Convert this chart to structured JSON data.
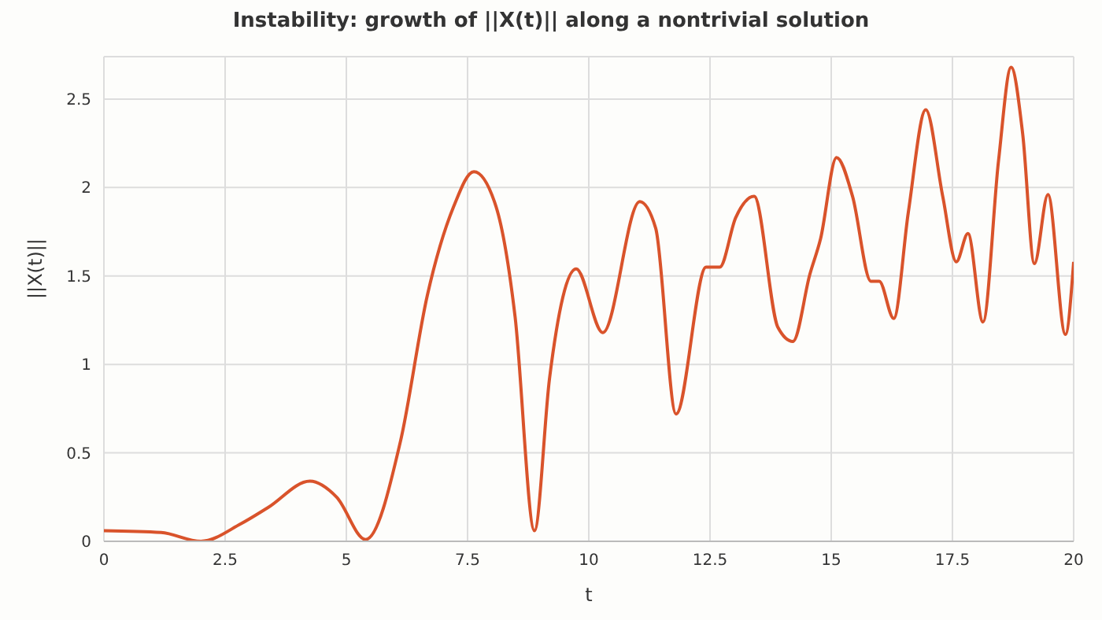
{
  "chart_data": {
    "type": "line",
    "title": "Instability: growth of ||X(t)|| along a nontrivial solution",
    "xlabel": "t",
    "ylabel": "||X(t)||",
    "x": [
      0,
      1.18,
      2.0,
      2.83,
      3.38,
      4.25,
      4.8,
      5.4,
      6.12,
      6.67,
      7.21,
      7.63,
      8.09,
      8.48,
      8.88,
      9.19,
      9.74,
      10.29,
      11.05,
      11.38,
      11.8,
      12.42,
      12.7,
      13.03,
      13.41,
      13.9,
      14.21,
      14.56,
      14.78,
      15.11,
      15.44,
      15.82,
      15.99,
      16.29,
      16.59,
      16.95,
      17.3,
      17.58,
      17.82,
      18.13,
      18.45,
      18.71,
      18.95,
      19.19,
      19.47,
      19.83,
      20.0
    ],
    "series": [
      {
        "color": "#d9532b",
        "values": [
          0.06,
          0.05,
          0.0,
          0.1,
          0.19,
          0.34,
          0.25,
          0.01,
          0.57,
          1.39,
          1.89,
          2.09,
          1.89,
          1.27,
          0.06,
          0.92,
          1.54,
          1.18,
          1.92,
          1.77,
          0.72,
          1.55,
          1.55,
          1.83,
          1.95,
          1.21,
          1.13,
          1.51,
          1.71,
          2.17,
          1.95,
          1.47,
          1.47,
          1.26,
          1.86,
          2.44,
          1.95,
          1.58,
          1.74,
          1.24,
          2.15,
          2.68,
          2.3,
          1.57,
          1.96,
          1.17,
          1.58
        ]
      }
    ],
    "xlim": [
      0,
      20
    ],
    "xticks": [
      0,
      2.5,
      5,
      7.5,
      10,
      12.5,
      15,
      17.5,
      20
    ],
    "ylim": [
      0,
      2.74
    ],
    "yticks": [
      0,
      0.5,
      1,
      1.5,
      2,
      2.5
    ],
    "grid": true,
    "marker": "none",
    "line_style": "solid"
  }
}
